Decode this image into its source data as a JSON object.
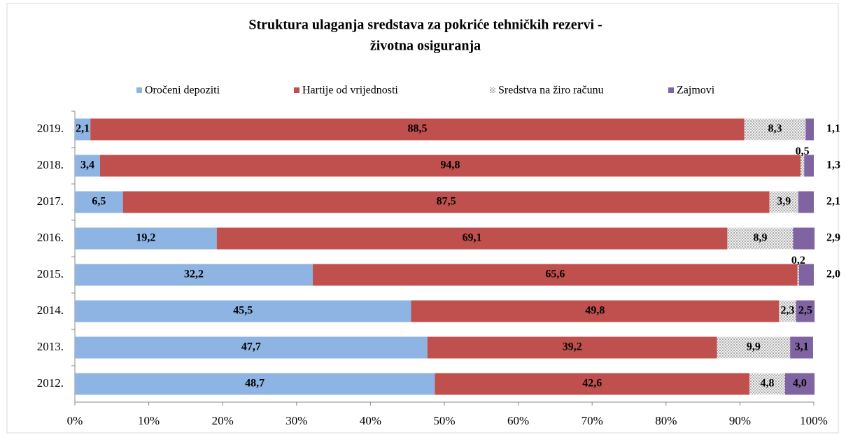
{
  "chart_data": {
    "type": "stacked_barh",
    "title": [
      "Struktura  ulaganja sredstava za pokriće tehničkih rezervi -",
      "životna osiguranja"
    ],
    "categories": [
      "2019.",
      "2018.",
      "2017.",
      "2016.",
      "2015.",
      "2014.",
      "2013.",
      "2012."
    ],
    "series": [
      {
        "name": "Oročeni depoziti",
        "color": "#8eb4e3",
        "values": [
          2.1,
          3.4,
          6.5,
          19.2,
          32.2,
          45.5,
          47.7,
          48.7
        ],
        "value_labels": [
          "2,1",
          "3,4",
          "6,5",
          "19,2",
          "32,2",
          "45,5",
          "47,7",
          "48,7"
        ]
      },
      {
        "name": "Hartije od vrijednosti",
        "color": "#c0504d",
        "values": [
          88.5,
          94.8,
          87.5,
          69.1,
          65.6,
          49.8,
          39.2,
          42.6
        ],
        "value_labels": [
          "88,5",
          "94,8",
          "87,5",
          "69,1",
          "65,6",
          "49,8",
          "39,2",
          "42,6"
        ]
      },
      {
        "name": "Sredstva na žiro računu",
        "color": "#bfbfbf",
        "pattern": "dots",
        "values": [
          8.3,
          0.5,
          3.9,
          8.9,
          0.2,
          2.3,
          9.9,
          4.8
        ],
        "value_labels": [
          "8,3",
          "0,5",
          "3,9",
          "8,9",
          "0,2",
          "2,3",
          "9,9",
          "4,8"
        ]
      },
      {
        "name": "Zajmovi",
        "color": "#8064a2",
        "values": [
          1.1,
          1.3,
          2.1,
          2.9,
          2.0,
          2.5,
          3.1,
          4.0
        ],
        "value_labels": [
          "1,1",
          "1,3",
          "2,1",
          "2,9",
          "2,0",
          "2,5",
          "3,1",
          "4,0"
        ]
      }
    ],
    "xlim": [
      0,
      100
    ],
    "xticks": [
      {
        "value": 0,
        "label": "0%"
      },
      {
        "value": 10,
        "label": "10%"
      },
      {
        "value": 20,
        "label": "20%"
      },
      {
        "value": 30,
        "label": "30%"
      },
      {
        "value": 40,
        "label": "40%"
      },
      {
        "value": 50,
        "label": "50%"
      },
      {
        "value": 60,
        "label": "60%"
      },
      {
        "value": 70,
        "label": "70%"
      },
      {
        "value": 80,
        "label": "80%"
      },
      {
        "value": 90,
        "label": "90%"
      },
      {
        "value": 100,
        "label": "100%"
      }
    ],
    "legend": "top"
  }
}
